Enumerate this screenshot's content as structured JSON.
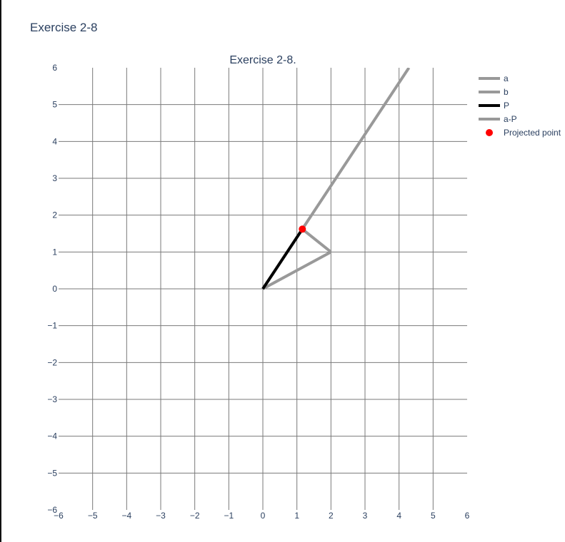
{
  "page": {
    "heading": "Exercise 2-8"
  },
  "chart_data": {
    "type": "line",
    "title": "Exercise 2-8.",
    "xlabel": "",
    "ylabel": "",
    "xlim": [
      -6,
      6
    ],
    "ylim": [
      -6,
      6
    ],
    "xticks": [
      -6,
      -5,
      -4,
      -3,
      -2,
      -1,
      0,
      1,
      2,
      3,
      4,
      5,
      6
    ],
    "yticks": [
      -6,
      -5,
      -4,
      -3,
      -2,
      -1,
      0,
      1,
      2,
      3,
      4,
      5,
      6
    ],
    "grid": true,
    "legend_position": "top-right",
    "series": [
      {
        "name": "a",
        "mode": "line",
        "color": "#999999",
        "x": [
          0,
          4.29
        ],
        "y": [
          0,
          6
        ]
      },
      {
        "name": "b",
        "mode": "line",
        "color": "#999999",
        "x": [
          0,
          2
        ],
        "y": [
          0,
          1
        ]
      },
      {
        "name": "P",
        "mode": "line",
        "color": "#000000",
        "x": [
          0,
          1.16
        ],
        "y": [
          0,
          1.62
        ]
      },
      {
        "name": "a-P",
        "mode": "line",
        "color": "#999999",
        "x": [
          2,
          1.16
        ],
        "y": [
          1,
          1.62
        ]
      },
      {
        "name": "Projected point",
        "mode": "marker",
        "color": "#ff0000",
        "x": [
          1.16
        ],
        "y": [
          1.62
        ]
      }
    ]
  }
}
